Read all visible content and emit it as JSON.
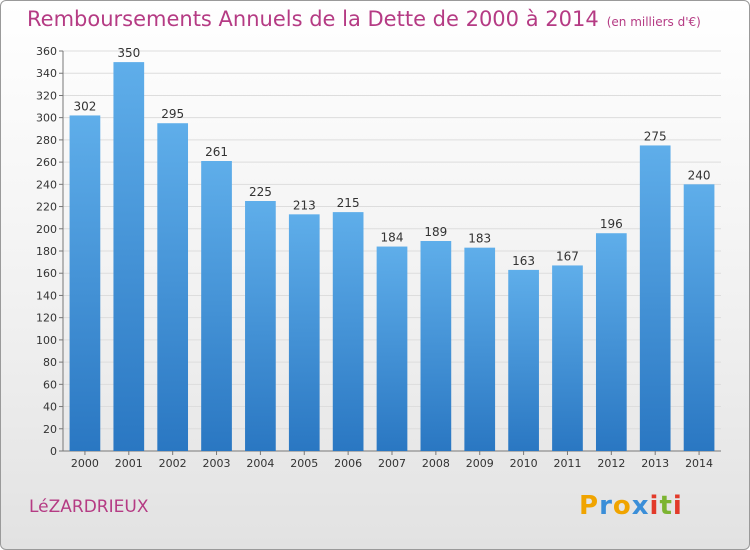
{
  "title": "Remboursements Annuels de la Dette de 2000 à 2014",
  "subtitle": "(en milliers d'€)",
  "commune": "LéZARDRIEUX",
  "logo": {
    "letters": [
      "P",
      "r",
      "o",
      "x",
      "i",
      "t",
      "i"
    ],
    "colors": [
      "#f0a400",
      "#3a8ed8",
      "#f0a400",
      "#3a8ed8",
      "#e23a2a",
      "#7cb431",
      "#e23a2a"
    ]
  },
  "colors": {
    "title": "#b53b84",
    "bar_light": "#5faeea",
    "bar_dark": "#2a77c2"
  },
  "chart_data": {
    "type": "bar",
    "categories": [
      "2000",
      "2001",
      "2002",
      "2003",
      "2004",
      "2005",
      "2006",
      "2007",
      "2008",
      "2009",
      "2010",
      "2011",
      "2012",
      "2013",
      "2014"
    ],
    "values": [
      302,
      350,
      295,
      261,
      225,
      213,
      215,
      184,
      189,
      183,
      163,
      167,
      196,
      275,
      240
    ],
    "title": "Remboursements Annuels de la Dette de 2000 à 2014",
    "ylim": [
      0,
      360
    ],
    "yticks": [
      0,
      20,
      40,
      60,
      80,
      100,
      120,
      140,
      160,
      180,
      200,
      220,
      240,
      260,
      280,
      300,
      320,
      340,
      360
    ],
    "grid": true,
    "data_labels": true
  }
}
